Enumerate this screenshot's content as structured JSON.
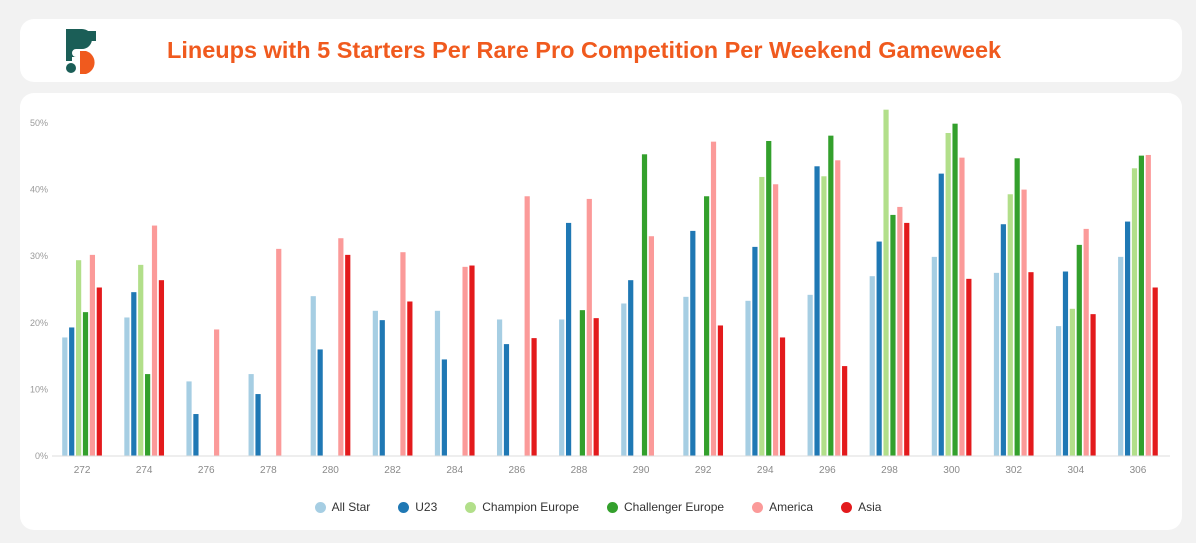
{
  "title": "Lineups with 5 Starters Per Rare Pro Competition Per Weekend Gameweek",
  "logo": {
    "icon": "sorare-s-logo-icon",
    "colors": [
      "#1b5e57",
      "#f05a1e"
    ]
  },
  "chart_data": {
    "type": "bar",
    "title": "Lineups with 5 Starters Per Rare Pro Competition Per Weekend Gameweek",
    "xlabel": "",
    "ylabel": "",
    "ylim": [
      0,
      50
    ],
    "y_ticks": [
      0,
      10,
      20,
      30,
      40,
      50
    ],
    "y_tick_labels": [
      "0%",
      "10%",
      "20%",
      "30%",
      "40%",
      "50%"
    ],
    "grid": false,
    "legend_position": "bottom-center",
    "categories": [
      "272",
      "274",
      "276",
      "278",
      "280",
      "282",
      "284",
      "286",
      "288",
      "290",
      "292",
      "294",
      "296",
      "298",
      "300",
      "302",
      "304",
      "306"
    ],
    "series": [
      {
        "name": "All Star",
        "color": "#a6cee3",
        "values": [
          17.8,
          20.8,
          11.2,
          12.3,
          24.0,
          21.8,
          21.8,
          20.5,
          20.5,
          22.9,
          23.9,
          23.3,
          24.2,
          27.0,
          29.9,
          27.5,
          19.5,
          29.9
        ]
      },
      {
        "name": "U23",
        "color": "#1f78b4",
        "values": [
          19.3,
          24.6,
          6.3,
          9.3,
          16.0,
          20.4,
          14.5,
          16.8,
          35.0,
          26.4,
          33.8,
          31.4,
          43.5,
          32.2,
          42.4,
          34.8,
          27.7,
          35.2
        ]
      },
      {
        "name": "Champion Europe",
        "color": "#b2df8a",
        "values": [
          29.4,
          28.7,
          null,
          null,
          null,
          null,
          null,
          null,
          null,
          null,
          null,
          41.9,
          42.0,
          52.0,
          48.5,
          39.3,
          22.1,
          43.2
        ]
      },
      {
        "name": "Challenger Europe",
        "color": "#33a02c",
        "values": [
          21.6,
          12.3,
          null,
          null,
          null,
          null,
          null,
          null,
          21.9,
          45.3,
          39.0,
          47.3,
          48.1,
          36.2,
          49.9,
          44.7,
          31.7,
          45.1
        ]
      },
      {
        "name": "America",
        "color": "#fb9a99",
        "values": [
          30.2,
          34.6,
          19.0,
          31.1,
          32.7,
          30.6,
          28.4,
          39.0,
          38.6,
          33.0,
          47.2,
          40.8,
          44.4,
          37.4,
          44.8,
          40.0,
          34.1,
          45.2
        ]
      },
      {
        "name": "Asia",
        "color": "#e31a1c",
        "values": [
          25.3,
          26.4,
          null,
          null,
          30.2,
          23.2,
          28.6,
          17.7,
          20.7,
          null,
          19.6,
          17.8,
          13.5,
          35.0,
          26.6,
          27.6,
          21.3,
          25.3
        ]
      }
    ]
  }
}
